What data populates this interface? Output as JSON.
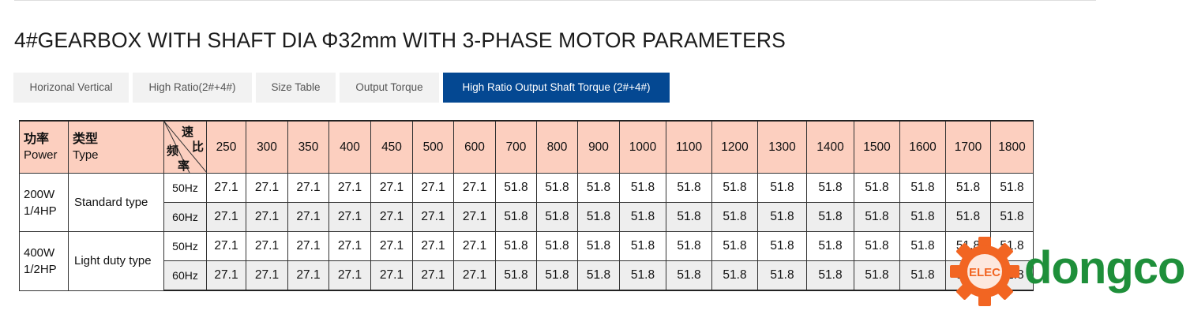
{
  "title": "4#GEARBOX WITH SHAFT DIA Φ32mm WITH 3-PHASE MOTOR PARAMETERS",
  "tabs": [
    {
      "label": "Horizonal Vertical",
      "active": false
    },
    {
      "label": "High Ratio(2#+4#)",
      "active": false
    },
    {
      "label": "Size Table",
      "active": false
    },
    {
      "label": "Output Torque",
      "active": false
    },
    {
      "label": "High Ratio Output Shaft Torque (2#+4#)",
      "active": true
    }
  ],
  "colors": {
    "accent": "#044892",
    "header_bg": "#fccfbf",
    "alt_row": "#eeeeee",
    "logo_green": "#1e8f3a",
    "logo_orange": "#f26522"
  },
  "table": {
    "header": {
      "power_zh": "功率",
      "power_en": "Power",
      "type_zh": "类型",
      "type_en": "Type",
      "corner_speed": "速",
      "corner_ratio": "比",
      "corner_freq1": "频",
      "corner_freq2": "率"
    },
    "ratios": [
      "250",
      "300",
      "350",
      "400",
      "450",
      "500",
      "600",
      "700",
      "800",
      "900",
      "1000",
      "1100",
      "1200",
      "1300",
      "1400",
      "1500",
      "1600",
      "1700",
      "1800"
    ],
    "groups": [
      {
        "power_w": "200W",
        "power_hp": "1/4HP",
        "type": "Standard type",
        "rows": [
          {
            "freq": "50Hz",
            "values": [
              "27.1",
              "27.1",
              "27.1",
              "27.1",
              "27.1",
              "27.1",
              "27.1",
              "51.8",
              "51.8",
              "51.8",
              "51.8",
              "51.8",
              "51.8",
              "51.8",
              "51.8",
              "51.8",
              "51.8",
              "51.8",
              "51.8"
            ]
          },
          {
            "freq": "60Hz",
            "values": [
              "27.1",
              "27.1",
              "27.1",
              "27.1",
              "27.1",
              "27.1",
              "27.1",
              "51.8",
              "51.8",
              "51.8",
              "51.8",
              "51.8",
              "51.8",
              "51.8",
              "51.8",
              "51.8",
              "51.8",
              "51.8",
              "51.8"
            ]
          }
        ]
      },
      {
        "power_w": "400W",
        "power_hp": "1/2HP",
        "type": "Light duty type",
        "rows": [
          {
            "freq": "50Hz",
            "values": [
              "27.1",
              "27.1",
              "27.1",
              "27.1",
              "27.1",
              "27.1",
              "27.1",
              "51.8",
              "51.8",
              "51.8",
              "51.8",
              "51.8",
              "51.8",
              "51.8",
              "51.8",
              "51.8",
              "51.8",
              "51.8",
              "51.8"
            ]
          },
          {
            "freq": "60Hz",
            "values": [
              "27.1",
              "27.1",
              "27.1",
              "27.1",
              "27.1",
              "27.1",
              "27.1",
              "51.8",
              "51.8",
              "51.8",
              "51.8",
              "51.8",
              "51.8",
              "51.8",
              "51.8",
              "51.8",
              "51.8",
              "51.8",
              "51.8"
            ]
          }
        ]
      }
    ]
  },
  "watermark": {
    "text": "dongco",
    "badge": "ELEC"
  }
}
